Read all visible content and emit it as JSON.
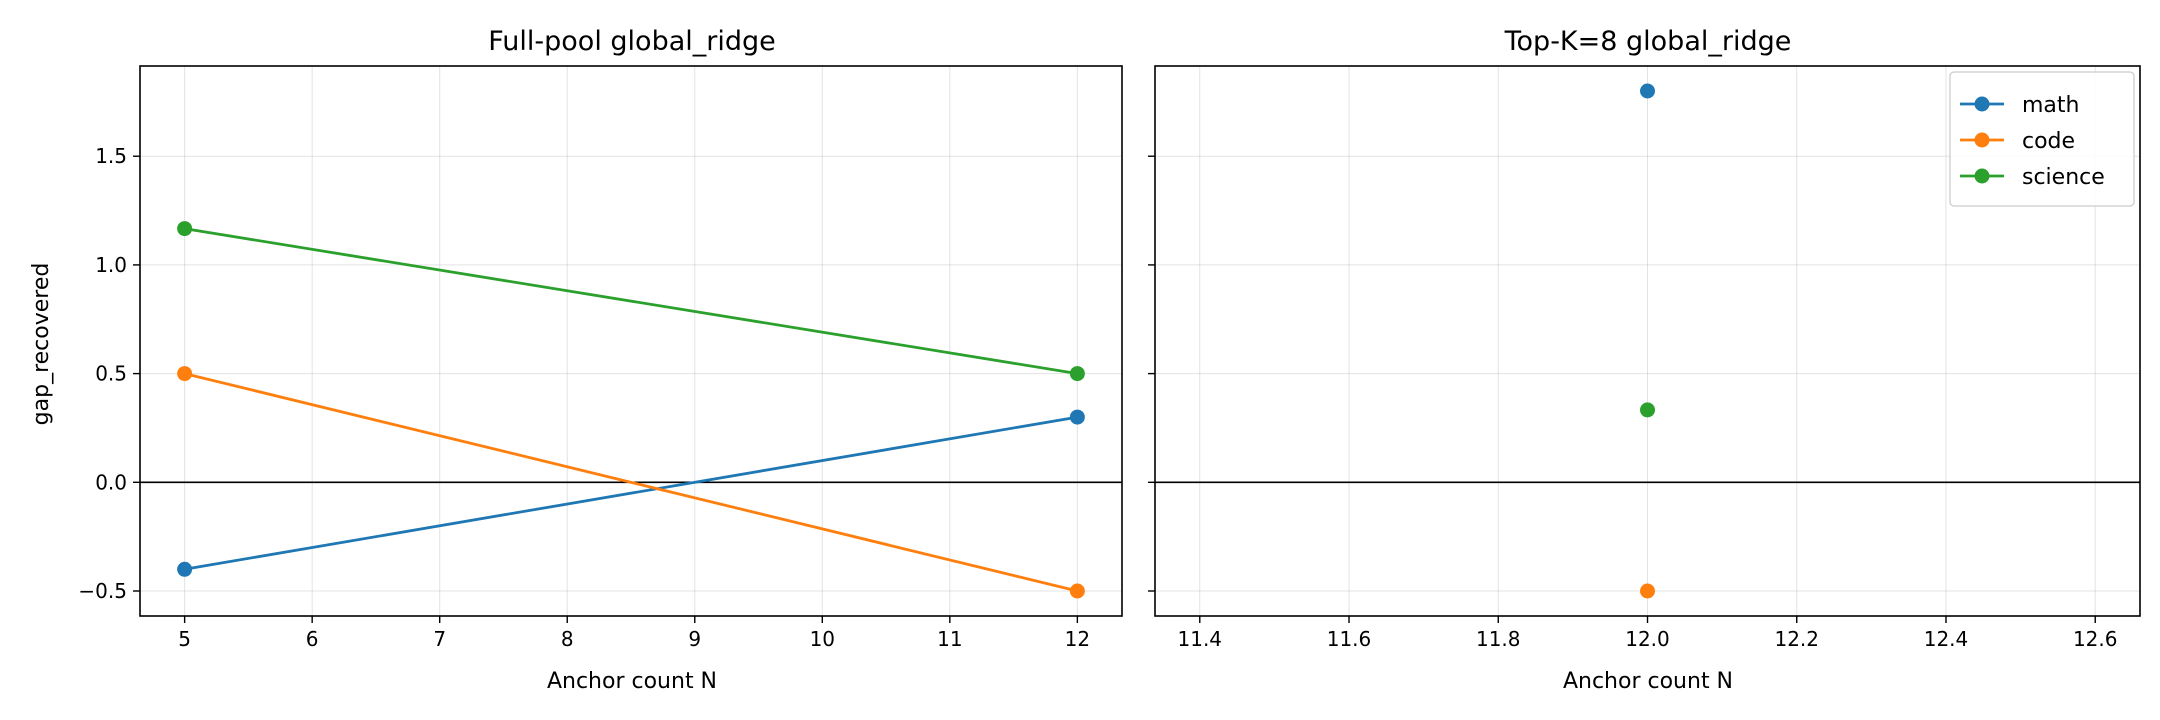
{
  "chart_data": [
    {
      "type": "line",
      "title": "Full-pool global_ridge",
      "xlabel": "Anchor count N",
      "ylabel": "gap_recovered",
      "xlim": [
        4.65,
        12.35
      ],
      "ylim": [
        -0.615,
        1.915
      ],
      "xticks": [
        5,
        6,
        7,
        8,
        9,
        10,
        11,
        12
      ],
      "xtick_labels": [
        "5",
        "6",
        "7",
        "8",
        "9",
        "10",
        "11",
        "12"
      ],
      "yticks": [
        -0.5,
        0.0,
        0.5,
        1.0,
        1.5
      ],
      "ytick_labels": [
        "−0.5",
        "0.0",
        "0.5",
        "1.0",
        "1.5"
      ],
      "grid": true,
      "hline_at": 0.0,
      "legend": null,
      "series": [
        {
          "name": "math",
          "color": "#1f77b4",
          "x": [
            5,
            12
          ],
          "y": [
            -0.4,
            0.3
          ]
        },
        {
          "name": "code",
          "color": "#ff7f0e",
          "x": [
            5,
            12
          ],
          "y": [
            0.5,
            -0.5
          ]
        },
        {
          "name": "science",
          "color": "#2ca02c",
          "x": [
            5,
            12
          ],
          "y": [
            1.167,
            0.5
          ]
        }
      ]
    },
    {
      "type": "line",
      "title": "Top-K=8 global_ridge",
      "xlabel": "Anchor count N",
      "ylabel": "",
      "xlim": [
        11.34,
        12.66
      ],
      "ylim": [
        -0.615,
        1.915
      ],
      "xticks": [
        11.4,
        11.6,
        11.8,
        12.0,
        12.2,
        12.4,
        12.6
      ],
      "xtick_labels": [
        "11.4",
        "11.6",
        "11.8",
        "12.0",
        "12.2",
        "12.4",
        "12.6"
      ],
      "yticks": [
        -0.5,
        0.0,
        0.5,
        1.0,
        1.5
      ],
      "ytick_labels": [
        "",
        "",
        "",
        "",
        ""
      ],
      "grid": true,
      "hline_at": 0.0,
      "legend": "top-right",
      "series": [
        {
          "name": "math",
          "color": "#1f77b4",
          "x": [
            12
          ],
          "y": [
            1.8
          ]
        },
        {
          "name": "code",
          "color": "#ff7f0e",
          "x": [
            12
          ],
          "y": [
            -0.5
          ]
        },
        {
          "name": "science",
          "color": "#2ca02c",
          "x": [
            12
          ],
          "y": [
            0.333
          ]
        }
      ]
    }
  ]
}
